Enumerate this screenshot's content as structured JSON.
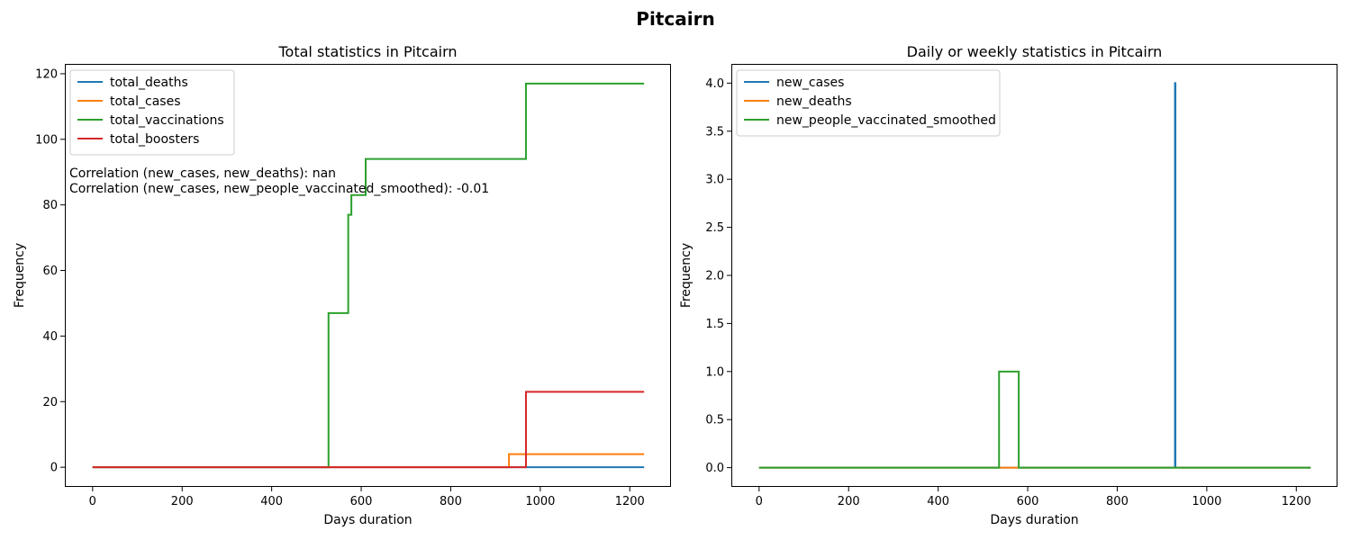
{
  "figure_title": "Pitcairn",
  "chart_data": [
    {
      "type": "line",
      "title": "Total statistics in Pitcairn",
      "xlabel": "Days duration",
      "ylabel": "Frequency",
      "xlim": [
        -62,
        1292
      ],
      "ylim": [
        -6,
        123
      ],
      "xticks": [
        0,
        200,
        400,
        600,
        800,
        1000,
        1200
      ],
      "yticks": [
        0,
        20,
        40,
        60,
        80,
        100,
        120
      ],
      "legend_position": "upper-left",
      "annotations": [
        "Correlation (new_cases, new_deaths): nan",
        "Correlation (new_cases, new_people_vaccinated_smoothed): -0.01"
      ],
      "series": [
        {
          "name": "total_deaths",
          "color": "#1f77b4",
          "points": [
            [
              0,
              0
            ],
            [
              1232,
              0
            ]
          ]
        },
        {
          "name": "total_cases",
          "color": "#ff7f0e",
          "points": [
            [
              0,
              0
            ],
            [
              930,
              0
            ],
            [
              930,
              4
            ],
            [
              1232,
              4
            ]
          ]
        },
        {
          "name": "total_vaccinations",
          "color": "#2ca02c",
          "points": [
            [
              0,
              0
            ],
            [
              527,
              0
            ],
            [
              527,
              47
            ],
            [
              571,
              47
            ],
            [
              571,
              77
            ],
            [
              578,
              77
            ],
            [
              578,
              83
            ],
            [
              610,
              83
            ],
            [
              610,
              94
            ],
            [
              968,
              94
            ],
            [
              968,
              117
            ],
            [
              1232,
              117
            ]
          ]
        },
        {
          "name": "total_boosters",
          "color": "#d62728",
          "points": [
            [
              0,
              0
            ],
            [
              968,
              0
            ],
            [
              968,
              23
            ],
            [
              1232,
              23
            ]
          ]
        }
      ]
    },
    {
      "type": "line",
      "title": "Daily or weekly statistics in Pitcairn",
      "xlabel": "Days duration",
      "ylabel": "Frequency",
      "xlim": [
        -62,
        1292
      ],
      "ylim": [
        -0.2,
        4.2
      ],
      "xticks": [
        0,
        200,
        400,
        600,
        800,
        1000,
        1200
      ],
      "yticks": [
        0.0,
        0.5,
        1.0,
        1.5,
        2.0,
        2.5,
        3.0,
        3.5,
        4.0
      ],
      "ytick_labels": [
        "0.0",
        "0.5",
        "1.0",
        "1.5",
        "2.0",
        "2.5",
        "3.0",
        "3.5",
        "4.0"
      ],
      "legend_position": "upper-left",
      "annotations": [],
      "series": [
        {
          "name": "new_cases",
          "color": "#1f77b4",
          "points": [
            [
              0,
              0
            ],
            [
              929,
              0
            ],
            [
              929,
              4
            ],
            [
              930,
              4
            ],
            [
              930,
              0
            ],
            [
              1232,
              0
            ]
          ]
        },
        {
          "name": "new_deaths",
          "color": "#ff7f0e",
          "points": [
            [
              0,
              0
            ],
            [
              1232,
              0
            ]
          ]
        },
        {
          "name": "new_people_vaccinated_smoothed",
          "color": "#2ca02c",
          "points": [
            [
              0,
              0
            ],
            [
              536,
              0
            ],
            [
              536,
              1
            ],
            [
              580,
              1
            ],
            [
              580,
              0
            ],
            [
              1232,
              0
            ]
          ]
        }
      ]
    }
  ]
}
